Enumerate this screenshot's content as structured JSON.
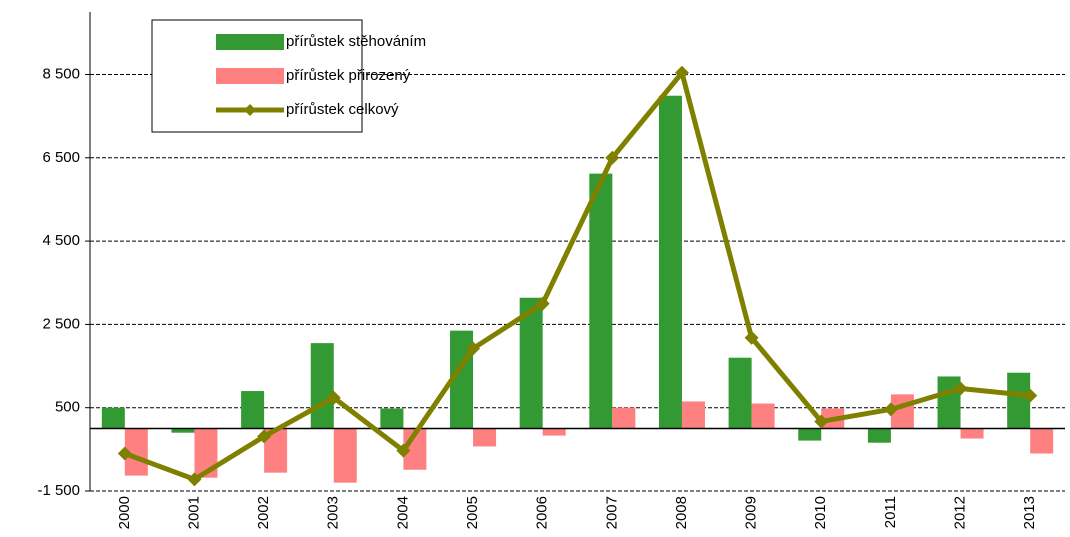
{
  "chart_data": {
    "type": "bar",
    "categories": [
      "2000",
      "2001",
      "2002",
      "2003",
      "2004",
      "2005",
      "2006",
      "2007",
      "2008",
      "2009",
      "2010",
      "2011",
      "2012",
      "2013"
    ],
    "series": [
      {
        "name": "přírůstek stěhováním",
        "type": "bar",
        "color": "#339933",
        "values": [
          500,
          -100,
          900,
          2050,
          480,
          2350,
          3140,
          6120,
          7990,
          1700,
          -290,
          -340,
          1250,
          1340
        ]
      },
      {
        "name": "přírůstek přirozený",
        "type": "bar",
        "color": "#ff8080",
        "values": [
          -1130,
          -1180,
          -1060,
          -1300,
          -990,
          -430,
          -170,
          500,
          650,
          600,
          480,
          820,
          -240,
          -600
        ]
      },
      {
        "name": "přírůstek celkový",
        "type": "line",
        "color": "#808000",
        "values": [
          -600,
          -1220,
          -190,
          740,
          -530,
          1920,
          3000,
          6500,
          8540,
          2180,
          170,
          460,
          960,
          790
        ]
      }
    ],
    "ylim": [
      -1500,
      10000
    ],
    "yticks": [
      {
        "value": -1500,
        "label": "-1 500"
      },
      500,
      {
        "value": 2500,
        "label": "2 500"
      },
      {
        "value": 4500,
        "label": "4 500"
      },
      {
        "value": 6500,
        "label": "6 500"
      },
      {
        "value": 8500,
        "label": "8 500"
      }
    ],
    "grid": true,
    "legend": "top-left"
  }
}
